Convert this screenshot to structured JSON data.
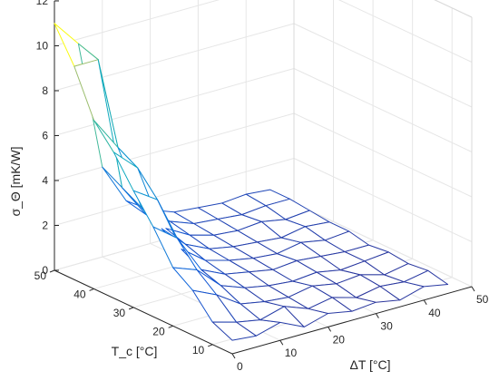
{
  "chart_data": {
    "type": "surface",
    "xlabel": "ΔT [°C]",
    "ylabel": "T_c [°C]",
    "zlabel": "σ_Θ [mK/W]",
    "xlim": [
      0,
      50
    ],
    "ylim": [
      5,
      50
    ],
    "zlim": [
      0,
      12
    ],
    "xticks": [
      "0",
      "10",
      "20",
      "30",
      "40",
      "50"
    ],
    "yticks": [
      "10",
      "20",
      "30",
      "40",
      "50"
    ],
    "zticks": [
      "0",
      "2",
      "4",
      "6",
      "8",
      "10",
      "12"
    ],
    "grid": true,
    "colormap": "parula",
    "x": [
      0,
      5,
      10,
      15,
      20,
      25,
      30,
      35,
      40,
      45
    ],
    "y": [
      5,
      10,
      15,
      20,
      25,
      30,
      35,
      40,
      45,
      50
    ],
    "z": [
      [
        0.6,
        0.5,
        0.8,
        0.3,
        0.6,
        0.4,
        0.5,
        0.3,
        0.6,
        0.4
      ],
      [
        1.0,
        0.7,
        0.5,
        0.8,
        0.4,
        0.6,
        0.3,
        0.5,
        0.4,
        0.6
      ],
      [
        2.0,
        1.5,
        0.8,
        0.6,
        0.5,
        0.7,
        0.5,
        0.6,
        0.3,
        0.5
      ],
      [
        2.6,
        2.2,
        1.2,
        0.8,
        0.6,
        0.5,
        0.6,
        0.4,
        0.5,
        0.6
      ],
      [
        4.0,
        3.2,
        1.5,
        1.0,
        0.8,
        0.6,
        0.7,
        0.6,
        0.5,
        0.5
      ],
      [
        5.2,
        4.5,
        2.0,
        1.2,
        0.9,
        0.7,
        0.6,
        0.8,
        0.6,
        0.7
      ],
      [
        6.5,
        5.5,
        2.5,
        1.5,
        1.0,
        0.8,
        0.7,
        0.6,
        0.8,
        0.7
      ],
      [
        7.5,
        6.0,
        3.0,
        1.8,
        1.2,
        0.9,
        0.8,
        0.9,
        0.7,
        0.8
      ],
      [
        9.5,
        9.5,
        3.5,
        2.0,
        1.4,
        1.0,
        0.9,
        0.8,
        0.9,
        0.9
      ],
      [
        11.0,
        9.8,
        4.0,
        2.2,
        1.5,
        1.1,
        1.0,
        0.9,
        1.0,
        0.9
      ]
    ]
  }
}
